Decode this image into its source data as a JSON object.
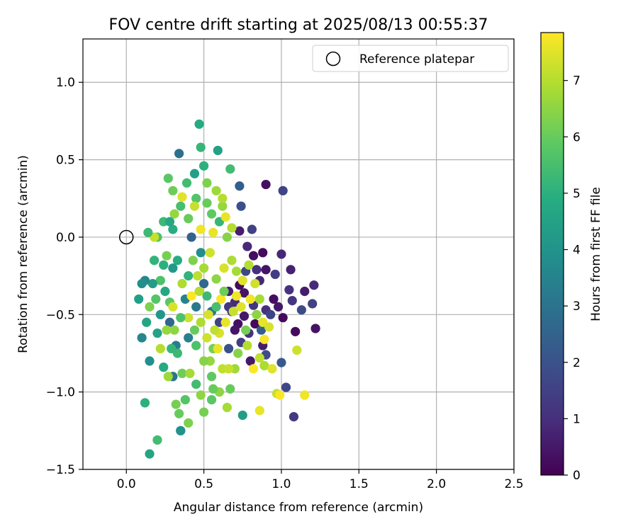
{
  "chart_data": {
    "type": "scatter",
    "title": "FOV centre drift starting at 2025/08/13 00:55:37",
    "xlabel": "Angular distance from reference (arcmin)",
    "ylabel": "Rotation from reference (arcmin)",
    "xlim": [
      -0.28,
      2.5
    ],
    "ylim": [
      -1.5,
      1.28
    ],
    "xticks": [
      0.0,
      0.5,
      1.0,
      1.5,
      2.0,
      2.5
    ],
    "yticks": [
      -1.5,
      -1.0,
      -0.5,
      0.0,
      0.5,
      1.0
    ],
    "xtick_labels": [
      "0.0",
      "0.5",
      "1.0",
      "1.5",
      "2.0",
      "2.5"
    ],
    "ytick_labels": [
      "−1.5",
      "−1.0",
      "−0.5",
      "0.0",
      "0.5",
      "1.0"
    ],
    "grid": true,
    "legend": {
      "position": "top-right",
      "entries": [
        "Reference platepar"
      ]
    },
    "reference_point": {
      "x": 0.0,
      "y": 0.0,
      "label": "Reference platepar"
    },
    "colorbar": {
      "label": "Hours from first FF file",
      "colormap": "viridis",
      "range": [
        0,
        7.85
      ],
      "ticks": [
        0,
        1,
        2,
        3,
        4,
        5,
        6,
        7
      ],
      "tick_labels": [
        "0",
        "1",
        "2",
        "3",
        "4",
        "5",
        "6",
        "7"
      ]
    },
    "points": [
      [
        0.9,
        0.34,
        0.3
      ],
      [
        1.01,
        0.3,
        1.6
      ],
      [
        1.21,
        -0.31,
        0.9
      ],
      [
        1.2,
        -0.43,
        1.5
      ],
      [
        1.22,
        -0.59,
        0.4
      ],
      [
        1.08,
        -1.16,
        1.3
      ],
      [
        1.03,
        -0.97,
        1.7
      ],
      [
        1.07,
        -0.41,
        1.2
      ],
      [
        1.13,
        -0.47,
        1.8
      ],
      [
        1.15,
        -0.35,
        0.6
      ],
      [
        1.09,
        -0.61,
        0.2
      ],
      [
        1.05,
        -0.34,
        1.1
      ],
      [
        1.0,
        -0.81,
        2.2
      ],
      [
        0.98,
        -0.45,
        0.5
      ],
      [
        1.06,
        -0.21,
        0.7
      ],
      [
        1.0,
        -0.11,
        0.8
      ],
      [
        0.96,
        -0.24,
        1.4
      ],
      [
        0.9,
        -0.21,
        0.4
      ],
      [
        0.88,
        -0.1,
        0.2
      ],
      [
        0.84,
        -0.21,
        1.0
      ],
      [
        0.82,
        -0.12,
        0.3
      ],
      [
        0.78,
        -0.06,
        0.9
      ],
      [
        0.74,
        0.2,
        1.9
      ],
      [
        0.73,
        0.04,
        0.6
      ],
      [
        0.81,
        0.05,
        1.5
      ],
      [
        0.76,
        -0.36,
        0.4
      ],
      [
        0.82,
        -0.44,
        1.2
      ],
      [
        0.83,
        -0.56,
        0.2
      ],
      [
        0.79,
        -0.62,
        1.1
      ],
      [
        0.76,
        -0.51,
        0.5
      ],
      [
        0.72,
        -0.56,
        0.3
      ],
      [
        0.74,
        -0.68,
        1.4
      ],
      [
        0.88,
        -0.7,
        0.6
      ],
      [
        0.9,
        -0.47,
        1.0
      ],
      [
        0.95,
        -0.4,
        0.3
      ],
      [
        0.93,
        -0.5,
        1.6
      ],
      [
        0.86,
        -0.28,
        0.8
      ],
      [
        0.7,
        -0.42,
        0.9
      ],
      [
        0.68,
        -0.48,
        1.3
      ],
      [
        0.73,
        -0.31,
        0.2
      ],
      [
        0.77,
        -0.22,
        1.7
      ],
      [
        0.66,
        -0.35,
        0.7
      ],
      [
        0.66,
        -0.45,
        1.2
      ],
      [
        0.7,
        -0.6,
        0.4
      ],
      [
        0.66,
        -0.72,
        2.0
      ],
      [
        0.8,
        -0.8,
        0.5
      ],
      [
        0.9,
        -0.76,
        1.8
      ],
      [
        1.01,
        -0.52,
        0.2
      ],
      [
        0.87,
        -0.6,
        2.4
      ],
      [
        0.6,
        -0.55,
        1.5
      ],
      [
        0.34,
        0.54,
        2.9
      ],
      [
        0.3,
        -0.9,
        3.0
      ],
      [
        0.35,
        -1.25,
        2.8
      ],
      [
        0.4,
        -0.65,
        3.4
      ],
      [
        0.45,
        -0.45,
        3.2
      ],
      [
        0.28,
        -0.55,
        2.6
      ],
      [
        0.5,
        -0.3,
        2.7
      ],
      [
        0.55,
        -0.48,
        3.1
      ],
      [
        0.38,
        -0.4,
        3.5
      ],
      [
        0.42,
        0.0,
        2.5
      ],
      [
        0.32,
        -0.7,
        3.3
      ],
      [
        0.48,
        -0.1,
        3.8
      ],
      [
        0.3,
        -0.2,
        4.2
      ],
      [
        0.47,
        0.73,
        4.8
      ],
      [
        0.44,
        0.41,
        4.4
      ],
      [
        0.48,
        0.58,
        5.2
      ],
      [
        0.59,
        0.56,
        4.5
      ],
      [
        0.5,
        0.46,
        5.0
      ],
      [
        0.67,
        0.44,
        5.4
      ],
      [
        0.73,
        0.33,
        2.4
      ],
      [
        0.12,
        -1.07,
        5.0
      ],
      [
        0.15,
        -1.4,
        4.6
      ],
      [
        0.2,
        -1.31,
        5.4
      ],
      [
        0.75,
        -1.15,
        4.3
      ],
      [
        0.35,
        -1.25,
        4.0
      ],
      [
        0.1,
        -0.65,
        3.6
      ],
      [
        0.15,
        -0.8,
        3.9
      ],
      [
        0.08,
        -0.4,
        4.4
      ],
      [
        0.22,
        -0.5,
        4.1
      ],
      [
        0.25,
        -0.35,
        4.7
      ],
      [
        0.2,
        0.0,
        5.6
      ],
      [
        0.3,
        0.05,
        4.9
      ],
      [
        0.27,
        0.38,
        5.8
      ],
      [
        0.3,
        0.3,
        6.1
      ],
      [
        0.24,
        0.1,
        5.3
      ],
      [
        0.35,
        0.2,
        5.5
      ],
      [
        0.4,
        0.12,
        6.0
      ],
      [
        0.45,
        0.25,
        5.7
      ],
      [
        0.52,
        0.35,
        6.3
      ],
      [
        0.55,
        0.15,
        5.9
      ],
      [
        0.58,
        0.3,
        6.7
      ],
      [
        0.6,
        0.1,
        5.2
      ],
      [
        0.62,
        0.2,
        6.6
      ],
      [
        0.65,
        0.0,
        6.4
      ],
      [
        0.68,
        0.06,
        7.0
      ],
      [
        0.18,
        -0.15,
        5.1
      ],
      [
        0.22,
        -0.28,
        5.6
      ],
      [
        0.26,
        -0.12,
        6.2
      ],
      [
        0.28,
        -0.42,
        5.8
      ],
      [
        0.31,
        -0.6,
        6.5
      ],
      [
        0.33,
        -0.75,
        5.3
      ],
      [
        0.36,
        -0.88,
        6.1
      ],
      [
        0.38,
        -1.05,
        5.7
      ],
      [
        0.34,
        -1.14,
        6.0
      ],
      [
        0.4,
        -1.2,
        6.3
      ],
      [
        0.45,
        -0.95,
        5.4
      ],
      [
        0.5,
        -1.13,
        6.2
      ],
      [
        0.55,
        -0.9,
        5.9
      ],
      [
        0.6,
        -1.0,
        6.5
      ],
      [
        0.65,
        -1.1,
        6.8
      ],
      [
        0.67,
        -0.98,
        6.0
      ],
      [
        0.7,
        -0.85,
        6.7
      ],
      [
        0.72,
        -0.75,
        6.4
      ],
      [
        0.62,
        -0.85,
        7.1
      ],
      [
        0.54,
        -0.8,
        6.6
      ],
      [
        0.45,
        -0.7,
        5.6
      ],
      [
        0.48,
        -0.55,
        6.9
      ],
      [
        0.52,
        -0.65,
        7.3
      ],
      [
        0.56,
        -0.72,
        6.2
      ],
      [
        0.6,
        -0.62,
        7.4
      ],
      [
        0.64,
        -0.55,
        7.6
      ],
      [
        0.69,
        -0.48,
        7.2
      ],
      [
        0.71,
        -0.38,
        7.7
      ],
      [
        0.75,
        -0.28,
        7.5
      ],
      [
        0.79,
        -0.18,
        7.0
      ],
      [
        0.83,
        -0.3,
        7.3
      ],
      [
        0.86,
        -0.4,
        6.8
      ],
      [
        0.88,
        -0.55,
        7.6
      ],
      [
        0.89,
        -0.66,
        7.8
      ],
      [
        0.92,
        -0.58,
        7.4
      ],
      [
        0.86,
        -0.78,
        7.1
      ],
      [
        0.89,
        -0.83,
        6.9
      ],
      [
        0.94,
        -0.85,
        7.5
      ],
      [
        0.97,
        -1.01,
        7.2
      ],
      [
        0.99,
        -1.02,
        7.8
      ],
      [
        1.1,
        -0.73,
        7.3
      ],
      [
        1.15,
        -1.02,
        7.7
      ],
      [
        0.86,
        -1.12,
        7.6
      ],
      [
        0.82,
        -0.85,
        7.9
      ],
      [
        0.78,
        -0.7,
        7.0
      ],
      [
        0.46,
        -0.25,
        7.1
      ],
      [
        0.5,
        -0.2,
        6.8
      ],
      [
        0.54,
        -0.1,
        7.3
      ],
      [
        0.56,
        0.03,
        7.6
      ],
      [
        0.58,
        -0.27,
        6.5
      ],
      [
        0.61,
        -0.4,
        7.8
      ],
      [
        0.63,
        -0.2,
        7.4
      ],
      [
        0.48,
        0.05,
        7.7
      ],
      [
        0.44,
        0.2,
        7.2
      ],
      [
        0.36,
        0.26,
        7.5
      ],
      [
        0.62,
        0.25,
        7.0
      ],
      [
        0.64,
        0.13,
        7.6
      ],
      [
        0.42,
        -0.38,
        7.9
      ],
      [
        0.4,
        -0.52,
        7.3
      ],
      [
        0.36,
        -0.3,
        6.9
      ],
      [
        0.3,
        -0.45,
        7.4
      ],
      [
        0.26,
        -0.6,
        6.6
      ],
      [
        0.22,
        -0.72,
        7.0
      ],
      [
        0.18,
        0.0,
        7.2
      ],
      [
        0.15,
        -0.45,
        6.3
      ],
      [
        0.27,
        -0.9,
        6.7
      ],
      [
        0.32,
        -1.08,
        6.2
      ],
      [
        0.41,
        -0.88,
        6.8
      ],
      [
        0.48,
        -1.02,
        6.5
      ],
      [
        0.55,
        -1.05,
        5.8
      ],
      [
        0.58,
        -0.45,
        5.5
      ],
      [
        0.52,
        -0.38,
        5.3
      ],
      [
        0.4,
        -0.25,
        5.1
      ],
      [
        0.33,
        -0.15,
        4.9
      ],
      [
        0.28,
        0.1,
        4.7
      ],
      [
        0.17,
        -0.3,
        4.3
      ],
      [
        0.12,
        -0.28,
        3.7
      ],
      [
        0.2,
        -0.62,
        4.5
      ],
      [
        0.24,
        -0.84,
        4.8
      ],
      [
        0.29,
        -0.72,
        5.2
      ],
      [
        0.35,
        -0.52,
        5.6
      ],
      [
        0.44,
        -0.6,
        6.0
      ],
      [
        0.5,
        -0.8,
        6.4
      ],
      [
        0.57,
        -0.6,
        7.1
      ],
      [
        0.63,
        -0.35,
        6.1
      ],
      [
        0.71,
        -0.22,
        6.8
      ],
      [
        0.74,
        -0.45,
        7.5
      ],
      [
        0.77,
        -0.6,
        6.2
      ],
      [
        0.8,
        -0.4,
        7.7
      ],
      [
        0.84,
        -0.5,
        6.5
      ],
      [
        0.68,
        -0.15,
        6.9
      ],
      [
        0.52,
        0.22,
        6.0
      ],
      [
        0.39,
        0.35,
        5.4
      ],
      [
        0.31,
        0.15,
        6.6
      ],
      [
        0.43,
        -0.15,
        6.3
      ],
      [
        0.24,
        -0.18,
        5.0
      ],
      [
        0.19,
        -0.4,
        5.7
      ],
      [
        0.13,
        -0.55,
        4.6
      ],
      [
        0.1,
        -0.3,
        3.9
      ],
      [
        0.14,
        0.03,
        5.3
      ],
      [
        0.47,
        -0.35,
        7.0
      ],
      [
        0.53,
        -0.5,
        7.4
      ],
      [
        0.59,
        -0.72,
        7.6
      ],
      [
        0.66,
        -0.85,
        7.2
      ],
      [
        0.56,
        -0.98,
        6.0
      ]
    ]
  }
}
